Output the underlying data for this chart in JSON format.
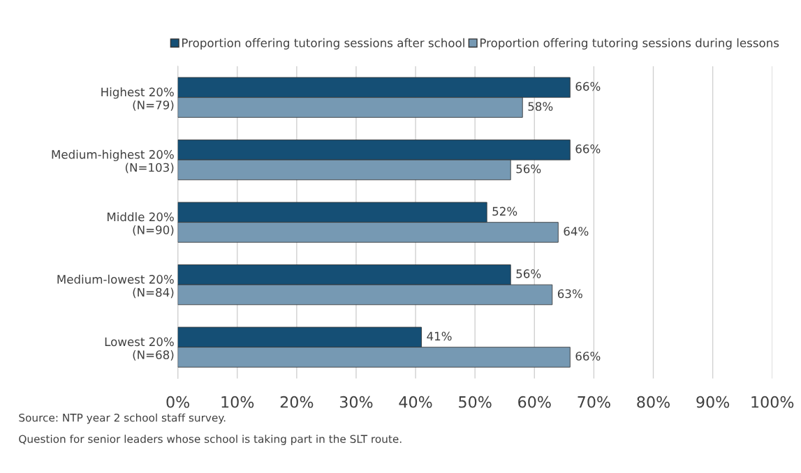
{
  "chart_data": {
    "type": "bar",
    "orientation": "horizontal",
    "categories": [
      "Highest 20%\n(N=79)",
      "Medium-highest 20%\n(N=103)",
      "Middle 20%\n(N=90)",
      "Medium-lowest 20%\n(N=84)",
      "Lowest 20%\n(N=68)"
    ],
    "series": [
      {
        "name": "Proportion offering tutoring sessions after school",
        "color": "#154f75",
        "values": [
          66,
          66,
          52,
          56,
          41
        ]
      },
      {
        "name": "Proportion offering tutoring sessions during lessons",
        "color": "#7699b3",
        "values": [
          58,
          56,
          64,
          63,
          66
        ]
      }
    ],
    "xlim": [
      0,
      100
    ],
    "xticks": [
      {
        "value": 0,
        "label": "0%"
      },
      {
        "value": 10,
        "label": "10%"
      },
      {
        "value": 20,
        "label": "20%"
      },
      {
        "value": 30,
        "label": "30%"
      },
      {
        "value": 40,
        "label": "40%"
      },
      {
        "value": 50,
        "label": "50%"
      },
      {
        "value": 60,
        "label": "60%"
      },
      {
        "value": 70,
        "label": "70%"
      },
      {
        "value": 80,
        "label": "80%"
      },
      {
        "value": 90,
        "label": "90%"
      },
      {
        "value": 100,
        "label": "100%"
      }
    ],
    "value_labels": [
      [
        "66%",
        "66%",
        "52%",
        "56%",
        "41%"
      ],
      [
        "58%",
        "56%",
        "64%",
        "63%",
        "66%"
      ]
    ],
    "grid": "x",
    "legend": "top",
    "annotations": [
      "Source: NTP year 2 school staff survey.",
      "Question for senior leaders whose school is taking part in the SLT route."
    ]
  }
}
